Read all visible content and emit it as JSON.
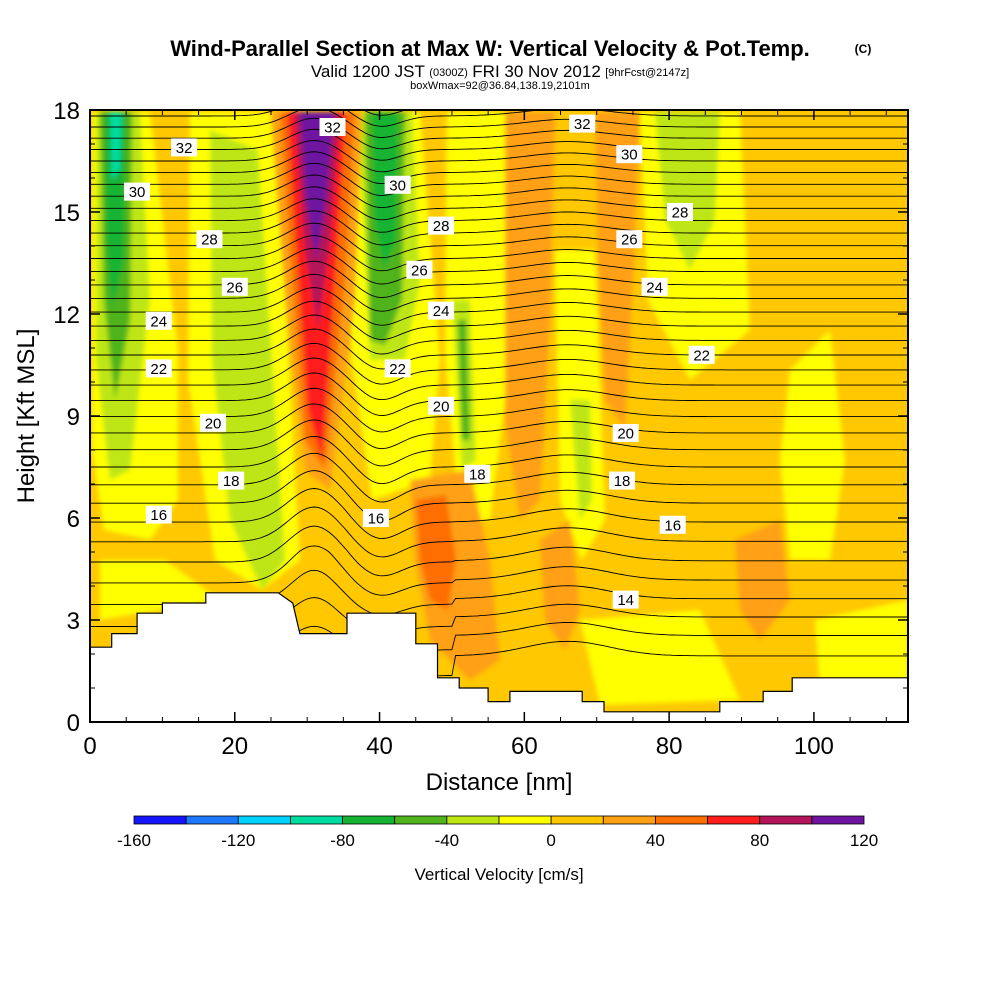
{
  "titles": {
    "main": "Wind-Parallel Section at Max W: Vertical Velocity & Pot.Temp.",
    "main_suffix": "(C)",
    "line2_a": "Valid 1200 JST",
    "line2_b": "(0300Z)",
    "line2_c": "FRI 30 Nov 2012",
    "line2_d": "[9hrFcst@2147z]",
    "line3": "boxWmax=92@36.84,138.19,2101m"
  },
  "chart_data": {
    "type": "heatmap",
    "xlabel": "Distance [nm]",
    "ylabel": "Height [Kft MSL]",
    "xlim": [
      0,
      113
    ],
    "ylim": [
      0,
      18
    ],
    "x_ticks": [
      "0",
      "20",
      "40",
      "60",
      "80",
      "100"
    ],
    "y_ticks": [
      "0",
      "3",
      "6",
      "9",
      "12",
      "15",
      "18"
    ],
    "x_tick_values": [
      0,
      20,
      40,
      60,
      80,
      100
    ],
    "y_tick_values": [
      0,
      3,
      6,
      9,
      12,
      15,
      18
    ],
    "colorbar": {
      "title": "Vertical Velocity [cm/s]",
      "min": -160,
      "max": 120,
      "labels": [
        "-160",
        "-120",
        "-80",
        "-40",
        "0",
        "40",
        "80",
        "120"
      ],
      "label_values": [
        -160,
        -120,
        -80,
        -40,
        0,
        40,
        80,
        120
      ],
      "colors": [
        "#1414ff",
        "#1e78ff",
        "#00d2ff",
        "#00dca0",
        "#14b432",
        "#50b41e",
        "#bee614",
        "#ffff00",
        "#ffc800",
        "#ffa014",
        "#ff6e00",
        "#ff1e1e",
        "#b4145a",
        "#6e14a0"
      ]
    },
    "contour_labels": [
      {
        "text": "32",
        "x": 13,
        "y": 16.9
      },
      {
        "text": "32",
        "x": 33.5,
        "y": 17.5
      },
      {
        "text": "32",
        "x": 68,
        "y": 17.6
      },
      {
        "text": "30",
        "x": 6.5,
        "y": 15.6
      },
      {
        "text": "30",
        "x": 42.5,
        "y": 15.8
      },
      {
        "text": "30",
        "x": 74.5,
        "y": 16.7
      },
      {
        "text": "28",
        "x": 16.5,
        "y": 14.2
      },
      {
        "text": "28",
        "x": 48.5,
        "y": 14.6
      },
      {
        "text": "28",
        "x": 81.5,
        "y": 15.0
      },
      {
        "text": "26",
        "x": 20,
        "y": 12.8
      },
      {
        "text": "26",
        "x": 45.5,
        "y": 13.3
      },
      {
        "text": "26",
        "x": 74.5,
        "y": 14.2
      },
      {
        "text": "24",
        "x": 9.5,
        "y": 11.8
      },
      {
        "text": "24",
        "x": 48.5,
        "y": 12.1
      },
      {
        "text": "24",
        "x": 78,
        "y": 12.8
      },
      {
        "text": "22",
        "x": 9.5,
        "y": 10.4
      },
      {
        "text": "22",
        "x": 42.5,
        "y": 10.4
      },
      {
        "text": "22",
        "x": 84.5,
        "y": 10.8
      },
      {
        "text": "20",
        "x": 17,
        "y": 8.8
      },
      {
        "text": "20",
        "x": 48.5,
        "y": 9.3
      },
      {
        "text": "20",
        "x": 74,
        "y": 8.5
      },
      {
        "text": "18",
        "x": 19.5,
        "y": 7.1
      },
      {
        "text": "18",
        "x": 53.5,
        "y": 7.3
      },
      {
        "text": "18",
        "x": 73.5,
        "y": 7.1
      },
      {
        "text": "16",
        "x": 9.5,
        "y": 6.1
      },
      {
        "text": "16",
        "x": 39.5,
        "y": 6.0
      },
      {
        "text": "16",
        "x": 80.5,
        "y": 5.8
      },
      {
        "text": "14",
        "x": 74,
        "y": 3.6
      }
    ],
    "terrain": [
      [
        0,
        2.2
      ],
      [
        3,
        2.2
      ],
      [
        3,
        2.6
      ],
      [
        6.5,
        2.6
      ],
      [
        6.5,
        3.2
      ],
      [
        10,
        3.2
      ],
      [
        10,
        3.5
      ],
      [
        16,
        3.5
      ],
      [
        16,
        3.8
      ],
      [
        26,
        3.8
      ],
      [
        28,
        3.5
      ],
      [
        29,
        2.6
      ],
      [
        35.5,
        2.6
      ],
      [
        35.5,
        3.2
      ],
      [
        45,
        3.2
      ],
      [
        45,
        2.3
      ],
      [
        48,
        2.3
      ],
      [
        48,
        1.3
      ],
      [
        51,
        1.3
      ],
      [
        51,
        1.0
      ],
      [
        55,
        1.0
      ],
      [
        55,
        0.6
      ],
      [
        58,
        0.6
      ],
      [
        58,
        0.9
      ],
      [
        68,
        0.9
      ],
      [
        68,
        0.6
      ],
      [
        71,
        0.6
      ],
      [
        71,
        0.3
      ],
      [
        87,
        0.3
      ],
      [
        87,
        0.6
      ],
      [
        93,
        0.6
      ],
      [
        93,
        0.9
      ],
      [
        97,
        0.9
      ],
      [
        97,
        1.3
      ],
      [
        113,
        1.3
      ]
    ]
  }
}
